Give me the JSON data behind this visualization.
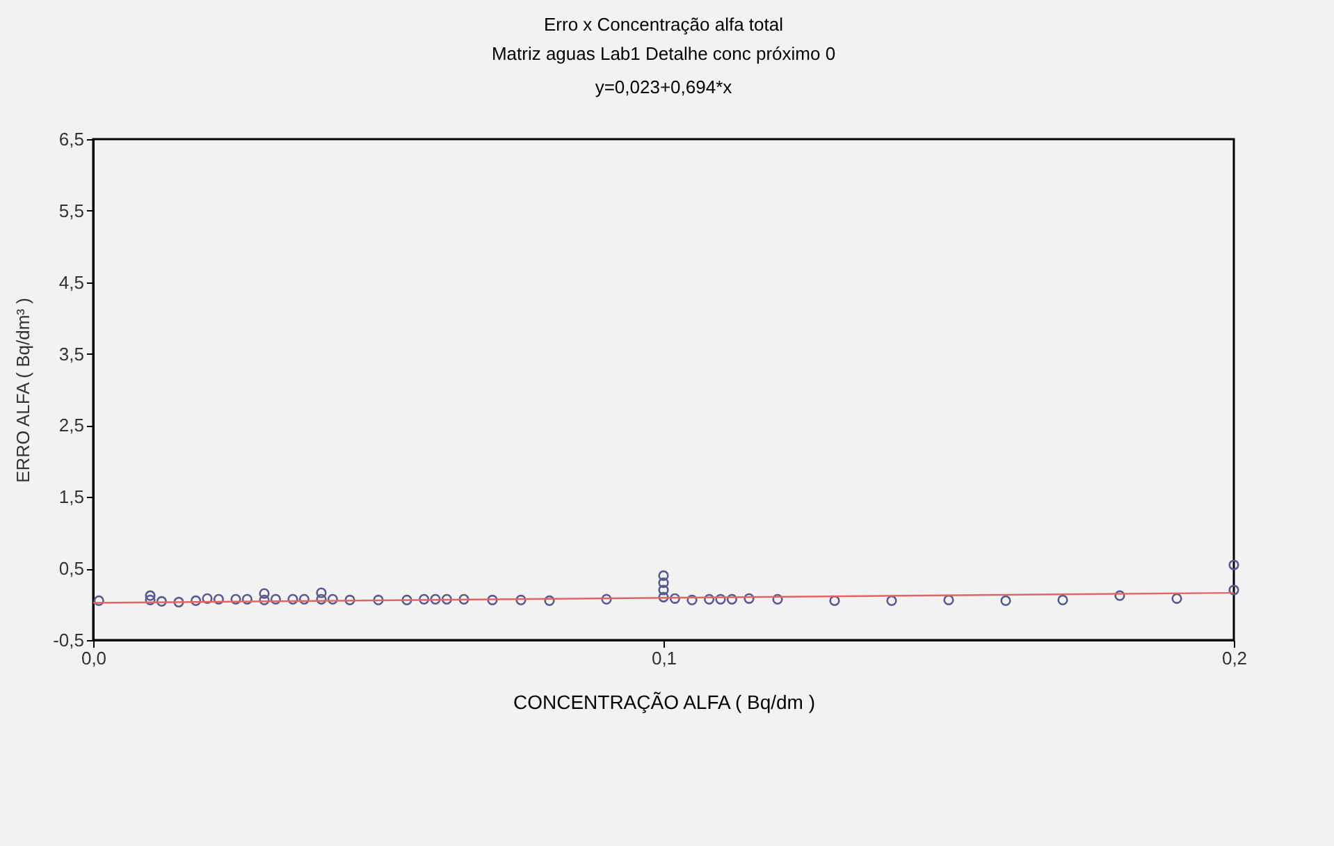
{
  "chart_data": {
    "type": "scatter",
    "title": "Erro x Concentração alfa total",
    "subtitle": "Matriz aguas  Lab1 Detalhe conc  próximo 0",
    "annotations": [
      "y=0,023+0,694*x"
    ],
    "xlabel": "CONCENTRAÇÃO ALFA ( Bq/dm )",
    "ylabel": "ERRO ALFA ( Bq/dm³ )",
    "marker": "circle",
    "grid": false,
    "xlim": [
      0,
      0.2
    ],
    "ylim": [
      -0.5,
      6.5
    ],
    "xticks": [
      {
        "value": 0,
        "label": "0,0"
      },
      {
        "value": 0.1,
        "label": "0,1"
      },
      {
        "value": 0.2,
        "label": "0,2"
      }
    ],
    "yticks": [
      {
        "value": -0.5,
        "label": "-0,5"
      },
      {
        "value": 0.5,
        "label": "0,5"
      },
      {
        "value": 1.5,
        "label": "1,5"
      },
      {
        "value": 2.5,
        "label": "2,5"
      },
      {
        "value": 3.5,
        "label": "3,5"
      },
      {
        "value": 4.5,
        "label": "4,5"
      },
      {
        "value": 5.5,
        "label": "5,5"
      },
      {
        "value": 6.5,
        "label": "6,5"
      }
    ],
    "series": [
      {
        "color": "#5a5a8c",
        "x": [
          0.001,
          0.01,
          0.01,
          0.012,
          0.015,
          0.018,
          0.02,
          0.022,
          0.025,
          0.027,
          0.03,
          0.03,
          0.032,
          0.035,
          0.037,
          0.04,
          0.04,
          0.042,
          0.045,
          0.05,
          0.055,
          0.058,
          0.06,
          0.062,
          0.065,
          0.07,
          0.075,
          0.08,
          0.09,
          0.1,
          0.1,
          0.1,
          0.1,
          0.102,
          0.105,
          0.108,
          0.11,
          0.112,
          0.115,
          0.12,
          0.13,
          0.14,
          0.15,
          0.16,
          0.17,
          0.18,
          0.19,
          0.2,
          0.2
        ],
        "values": [
          0.05,
          0.12,
          0.06,
          0.04,
          0.03,
          0.05,
          0.08,
          0.07,
          0.07,
          0.07,
          0.15,
          0.06,
          0.07,
          0.07,
          0.07,
          0.16,
          0.07,
          0.07,
          0.06,
          0.06,
          0.06,
          0.07,
          0.07,
          0.07,
          0.07,
          0.06,
          0.06,
          0.05,
          0.07,
          0.4,
          0.3,
          0.2,
          0.1,
          0.08,
          0.06,
          0.07,
          0.07,
          0.07,
          0.08,
          0.07,
          0.05,
          0.05,
          0.06,
          0.05,
          0.06,
          0.12,
          0.08,
          0.55,
          0.2
        ]
      },
      {
        "type": "line",
        "marker": "none",
        "color": "#e06666",
        "x": [
          0,
          0.2
        ],
        "values": [
          0.02,
          0.16
        ]
      }
    ]
  }
}
